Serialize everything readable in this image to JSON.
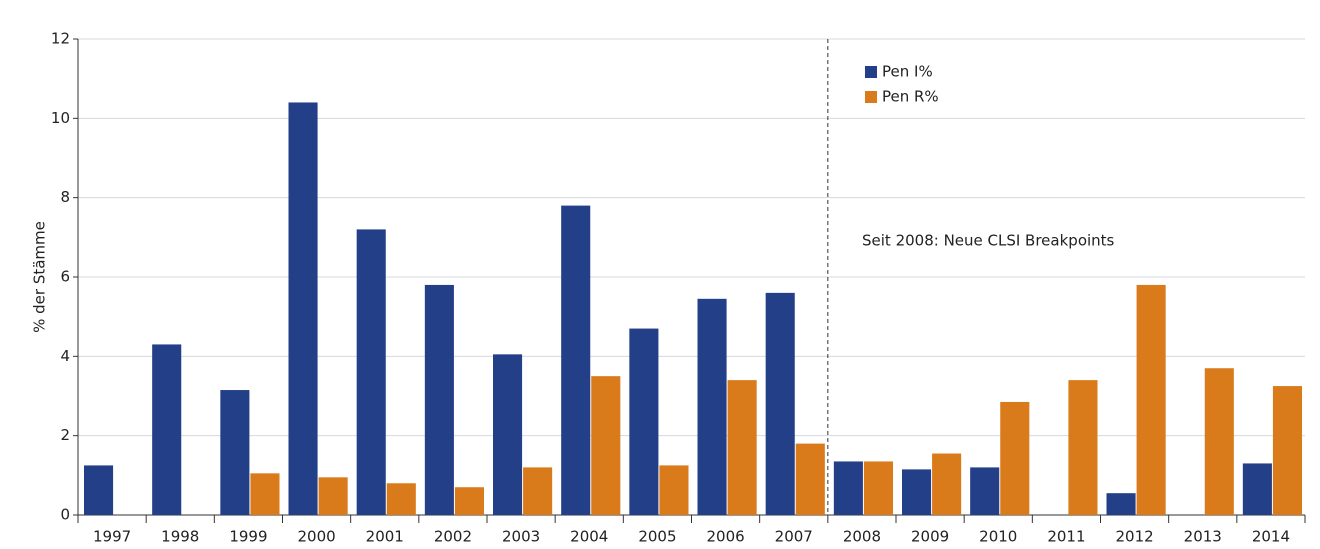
{
  "chart_data": {
    "type": "bar",
    "y_label": "% der Stämme",
    "annotation": "Seit 2008: Neue CLSI Breakpoints",
    "categories": [
      "1997",
      "1998",
      "1999",
      "2000",
      "2001",
      "2002",
      "2003",
      "2004",
      "2005",
      "2006",
      "2007",
      "2008",
      "2009",
      "2010",
      "2011",
      "2012",
      "2013",
      "2014"
    ],
    "series": [
      {
        "name": "Pen I%",
        "color": "#223f87",
        "values": [
          1.25,
          4.3,
          3.15,
          10.4,
          7.2,
          5.8,
          4.05,
          7.8,
          4.7,
          5.45,
          5.6,
          1.35,
          1.15,
          1.2,
          null,
          0.55,
          null,
          1.3
        ]
      },
      {
        "name": "Pen R%",
        "color": "#d97a1b",
        "values": [
          null,
          null,
          1.05,
          0.95,
          0.8,
          0.7,
          1.2,
          3.5,
          1.25,
          3.4,
          1.8,
          1.35,
          1.55,
          2.85,
          3.4,
          5.8,
          3.7,
          3.25
        ]
      }
    ],
    "ylim": [
      0,
      12
    ],
    "yticks": [
      0,
      2,
      4,
      6,
      8,
      10,
      12
    ],
    "grid": true,
    "legend": "top"
  }
}
